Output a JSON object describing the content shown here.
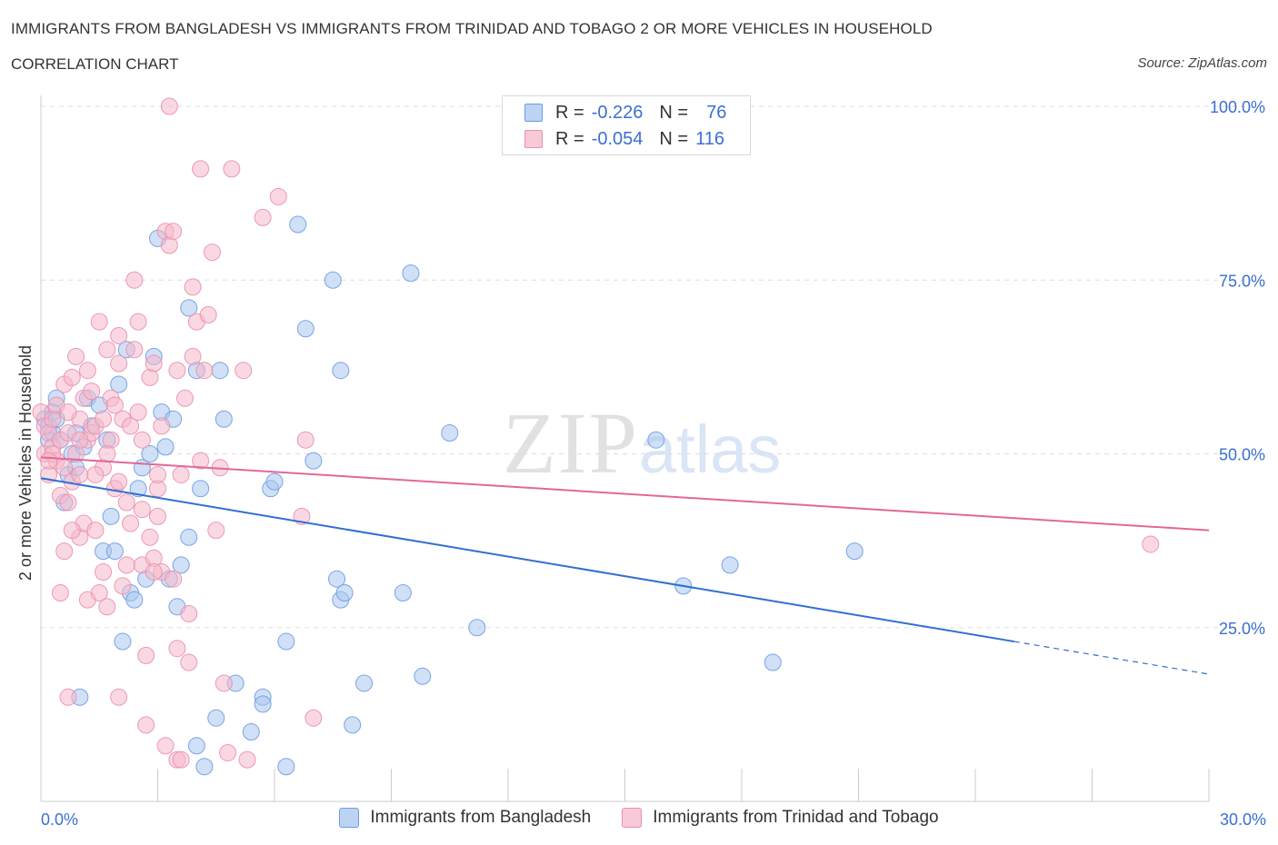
{
  "header": {
    "title": "IMMIGRANTS FROM BANGLADESH VS IMMIGRANTS FROM TRINIDAD AND TOBAGO 2 OR MORE VEHICLES IN HOUSEHOLD",
    "subtitle": "CORRELATION CHART",
    "source": "Source: ZipAtlas.com"
  },
  "watermark": {
    "zip": "ZIP",
    "atlas": "atlas"
  },
  "legend": {
    "rows": [
      {
        "r_label": "R =",
        "r_value": "-0.226",
        "n_label": "N =",
        "n_value": "76"
      },
      {
        "r_label": "R =",
        "r_value": "-0.054",
        "n_label": "N =",
        "n_value": "116"
      }
    ]
  },
  "colors": {
    "blue_fill": "#a9c6f0",
    "blue_stroke": "#6d9ce0",
    "blue_line": "#2f6fd2",
    "pink_fill": "#f6b8cb",
    "pink_stroke": "#ea8fae",
    "pink_line": "#e0689a",
    "axis_text": "#3b6fd1",
    "grid": "#dddddd"
  },
  "chart_data": {
    "type": "scatter",
    "title": "IMMIGRANTS FROM BANGLADESH VS IMMIGRANTS FROM TRINIDAD AND TOBAGO 2 OR MORE VEHICLES IN HOUSEHOLD",
    "subtitle": "CORRELATION CHART",
    "xlabel": "",
    "ylabel": "2 or more Vehicles in Household",
    "xlim": [
      0,
      30
    ],
    "ylim": [
      0,
      100
    ],
    "x_tick_labels": [
      "0.0%",
      "30.0%"
    ],
    "y_tick_labels": [
      "100.0%",
      "75.0%",
      "50.0%",
      "25.0%"
    ],
    "y_ticks": [
      100,
      75,
      50,
      25
    ],
    "grid": true,
    "legend_position": "top-center",
    "series": [
      {
        "name": "Immigrants from Bangladesh",
        "color": "#a9c6f0",
        "trend": {
          "x": [
            0,
            25
          ],
          "y": [
            46.5,
            23.0
          ],
          "dashed_to": [
            30,
            18.3
          ]
        },
        "points": [
          [
            0.1,
            55
          ],
          [
            0.2,
            54
          ],
          [
            0.2,
            52
          ],
          [
            0.3,
            53
          ],
          [
            0.3,
            56
          ],
          [
            0.4,
            55
          ],
          [
            0.4,
            58
          ],
          [
            0.5,
            52
          ],
          [
            0.6,
            43
          ],
          [
            0.7,
            47
          ],
          [
            0.8,
            50
          ],
          [
            0.9,
            48
          ],
          [
            0.9,
            53
          ],
          [
            1.0,
            15
          ],
          [
            1.1,
            51
          ],
          [
            1.2,
            58
          ],
          [
            1.3,
            54
          ],
          [
            1.5,
            57
          ],
          [
            1.6,
            36
          ],
          [
            1.7,
            52
          ],
          [
            1.8,
            41
          ],
          [
            1.9,
            36
          ],
          [
            2.0,
            60
          ],
          [
            2.1,
            23
          ],
          [
            2.2,
            65
          ],
          [
            2.3,
            30
          ],
          [
            2.4,
            29
          ],
          [
            2.5,
            45
          ],
          [
            2.6,
            48
          ],
          [
            2.7,
            32
          ],
          [
            2.8,
            50
          ],
          [
            2.9,
            64
          ],
          [
            3.0,
            81
          ],
          [
            3.1,
            56
          ],
          [
            3.2,
            51
          ],
          [
            3.3,
            32
          ],
          [
            3.4,
            55
          ],
          [
            3.5,
            28
          ],
          [
            3.6,
            34
          ],
          [
            3.8,
            38
          ],
          [
            3.8,
            71
          ],
          [
            4.0,
            62
          ],
          [
            4.1,
            45
          ],
          [
            4.0,
            8
          ],
          [
            4.2,
            5
          ],
          [
            4.5,
            12
          ],
          [
            4.6,
            62
          ],
          [
            4.7,
            55
          ],
          [
            5.0,
            17
          ],
          [
            5.4,
            10
          ],
          [
            5.7,
            15
          ],
          [
            5.7,
            14
          ],
          [
            5.9,
            45
          ],
          [
            6.0,
            46
          ],
          [
            6.3,
            23
          ],
          [
            6.3,
            5
          ],
          [
            6.6,
            83
          ],
          [
            6.8,
            68
          ],
          [
            7.0,
            49
          ],
          [
            7.5,
            75
          ],
          [
            7.6,
            32
          ],
          [
            7.7,
            62
          ],
          [
            7.7,
            29
          ],
          [
            7.8,
            30
          ],
          [
            8.0,
            11
          ],
          [
            8.3,
            17
          ],
          [
            9.3,
            30
          ],
          [
            9.5,
            76
          ],
          [
            9.8,
            18
          ],
          [
            10.5,
            53
          ],
          [
            11.2,
            25
          ],
          [
            15.8,
            52
          ],
          [
            16.5,
            31
          ],
          [
            17.7,
            34
          ],
          [
            18.8,
            20
          ],
          [
            20.9,
            36
          ]
        ]
      },
      {
        "name": "Immigrants from Trinidad and Tobago",
        "color": "#f6b8cb",
        "trend": {
          "x": [
            0,
            30
          ],
          "y": [
            49.5,
            39.0
          ]
        },
        "points": [
          [
            0.0,
            56
          ],
          [
            0.1,
            54
          ],
          [
            0.1,
            50
          ],
          [
            0.2,
            53
          ],
          [
            0.2,
            47
          ],
          [
            0.3,
            55
          ],
          [
            0.3,
            51
          ],
          [
            0.4,
            49
          ],
          [
            0.4,
            57
          ],
          [
            0.5,
            52
          ],
          [
            0.5,
            44
          ],
          [
            0.6,
            48
          ],
          [
            0.6,
            60
          ],
          [
            0.6,
            36
          ],
          [
            0.7,
            53
          ],
          [
            0.7,
            43
          ],
          [
            0.7,
            15
          ],
          [
            0.8,
            46
          ],
          [
            0.8,
            61
          ],
          [
            0.9,
            64
          ],
          [
            0.9,
            50
          ],
          [
            1.0,
            38
          ],
          [
            1.0,
            47
          ],
          [
            1.0,
            55
          ],
          [
            1.1,
            58
          ],
          [
            1.1,
            40
          ],
          [
            1.2,
            52
          ],
          [
            1.2,
            29
          ],
          [
            1.3,
            59
          ],
          [
            1.3,
            53
          ],
          [
            1.4,
            54
          ],
          [
            1.4,
            39
          ],
          [
            1.5,
            30
          ],
          [
            1.5,
            69
          ],
          [
            1.6,
            48
          ],
          [
            1.6,
            33
          ],
          [
            1.7,
            28
          ],
          [
            1.7,
            65
          ],
          [
            1.8,
            58
          ],
          [
            1.8,
            52
          ],
          [
            1.9,
            45
          ],
          [
            1.9,
            57
          ],
          [
            2.0,
            63
          ],
          [
            2.0,
            67
          ],
          [
            2.0,
            15
          ],
          [
            2.1,
            31
          ],
          [
            2.1,
            55
          ],
          [
            2.2,
            43
          ],
          [
            2.2,
            34
          ],
          [
            2.3,
            54
          ],
          [
            2.3,
            40
          ],
          [
            2.4,
            65
          ],
          [
            2.4,
            75
          ],
          [
            2.5,
            69
          ],
          [
            2.5,
            56
          ],
          [
            2.6,
            52
          ],
          [
            2.6,
            34
          ],
          [
            2.7,
            11
          ],
          [
            2.7,
            21
          ],
          [
            2.8,
            61
          ],
          [
            2.8,
            38
          ],
          [
            2.9,
            63
          ],
          [
            2.9,
            35
          ],
          [
            3.0,
            41
          ],
          [
            3.0,
            45
          ],
          [
            3.1,
            54
          ],
          [
            3.1,
            33
          ],
          [
            3.2,
            82
          ],
          [
            3.2,
            8
          ],
          [
            3.3,
            100
          ],
          [
            3.3,
            80
          ],
          [
            3.4,
            82
          ],
          [
            3.4,
            32
          ],
          [
            3.5,
            62
          ],
          [
            3.5,
            22
          ],
          [
            3.5,
            6
          ],
          [
            3.6,
            47
          ],
          [
            3.6,
            6
          ],
          [
            3.7,
            58
          ],
          [
            3.8,
            20
          ],
          [
            3.9,
            74
          ],
          [
            3.9,
            64
          ],
          [
            4.0,
            69
          ],
          [
            4.1,
            91
          ],
          [
            4.1,
            49
          ],
          [
            4.2,
            62
          ],
          [
            4.3,
            70
          ],
          [
            4.4,
            79
          ],
          [
            4.5,
            39
          ],
          [
            4.6,
            48
          ],
          [
            4.7,
            17
          ],
          [
            4.8,
            7
          ],
          [
            5.2,
            62
          ],
          [
            5.3,
            6
          ],
          [
            5.7,
            84
          ],
          [
            6.1,
            87
          ],
          [
            6.7,
            41
          ],
          [
            6.8,
            52
          ],
          [
            7.0,
            12
          ],
          [
            4.9,
            91
          ],
          [
            1.0,
            52
          ],
          [
            0.3,
            50
          ],
          [
            1.4,
            47
          ],
          [
            2.0,
            46
          ],
          [
            0.8,
            39
          ],
          [
            1.7,
            50
          ],
          [
            2.6,
            42
          ],
          [
            0.5,
            30
          ],
          [
            3.0,
            47
          ],
          [
            1.2,
            62
          ],
          [
            0.2,
            49
          ],
          [
            1.6,
            55
          ],
          [
            2.9,
            33
          ],
          [
            3.8,
            27
          ],
          [
            0.7,
            56
          ],
          [
            28.5,
            37
          ]
        ]
      }
    ]
  },
  "bottom_legend": {
    "items": [
      {
        "label": "Immigrants from Bangladesh"
      },
      {
        "label": "Immigrants from Trinidad and Tobago"
      }
    ]
  }
}
